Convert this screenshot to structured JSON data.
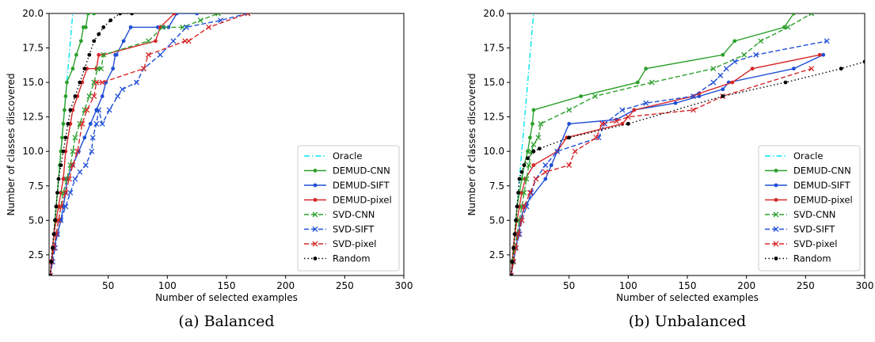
{
  "chart_data": [
    {
      "type": "line",
      "caption": "(a) Balanced",
      "xlabel": "Number of selected examples",
      "ylabel": "Number of classes discovered",
      "xlim": [
        0,
        300
      ],
      "ylim": [
        1,
        20
      ],
      "xticks": [
        50,
        100,
        150,
        200,
        250,
        300
      ],
      "yticks": [
        2.5,
        5.0,
        7.5,
        10.0,
        12.5,
        15.0,
        17.5,
        20.0
      ],
      "ytick_labels": [
        "2.5",
        "5.0",
        "7.5",
        "10.0",
        "12.5",
        "15.0",
        "17.5",
        "20.0"
      ],
      "legend_position": "lower-right",
      "series": [
        {
          "name": "Oracle",
          "color": "#00e5ee",
          "style": "dashdot",
          "marker": "none",
          "x": [
            1,
            20
          ],
          "y": [
            1,
            20
          ]
        },
        {
          "name": "DEMUD-CNN",
          "color": "#2ca02c",
          "style": "solid",
          "marker": "dot",
          "x": [
            1,
            2,
            3,
            4,
            5,
            6,
            7,
            8,
            9,
            10,
            11,
            12,
            13,
            14,
            15,
            20,
            23,
            27,
            29,
            31,
            33,
            38
          ],
          "y": [
            1,
            2,
            3,
            4,
            5,
            6,
            7,
            8,
            9,
            10,
            11,
            12,
            13,
            14,
            15,
            16,
            17,
            18,
            19,
            19,
            20,
            20
          ]
        },
        {
          "name": "DEMUD-SIFT",
          "color": "#1f4fd6",
          "style": "solid",
          "marker": "dot",
          "x": [
            1,
            2,
            4,
            7,
            10,
            12,
            14,
            15,
            20,
            25,
            30,
            35,
            40,
            45,
            48,
            54,
            56,
            57,
            63,
            69,
            92,
            97,
            101,
            108,
            125
          ],
          "y": [
            1,
            2,
            3,
            4,
            5,
            6,
            7,
            8,
            9,
            10,
            11,
            12,
            13,
            14,
            15,
            16,
            17,
            17,
            18,
            19,
            19,
            19,
            19,
            20,
            20
          ]
        },
        {
          "name": "DEMUD-pixel",
          "color": "#d62728",
          "style": "solid",
          "marker": "dot",
          "x": [
            1,
            2,
            3,
            4,
            6,
            8,
            10,
            12,
            14,
            18,
            20,
            24,
            28,
            32,
            40,
            42,
            46,
            90,
            94,
            106
          ],
          "y": [
            1,
            2,
            3,
            4,
            5,
            6,
            7,
            8,
            10,
            12,
            13,
            14,
            15,
            16,
            16,
            17,
            17,
            18,
            19,
            20
          ]
        },
        {
          "name": "SVD-CNN",
          "color": "#2ca02c",
          "style": "dashed",
          "marker": "x",
          "x": [
            2,
            4,
            6,
            8,
            10,
            12,
            15,
            18,
            20,
            22,
            26,
            30,
            34,
            38,
            41,
            44,
            46,
            84,
            96,
            113,
            128,
            143
          ],
          "y": [
            2,
            3,
            4,
            5,
            6,
            7,
            8,
            9,
            10,
            11,
            12,
            13,
            14,
            15,
            16,
            16,
            17,
            18,
            19,
            19,
            19.5,
            20
          ]
        },
        {
          "name": "SVD-SIFT",
          "color": "#1f4fd6",
          "style": "dashed",
          "marker": "x",
          "x": [
            1,
            3,
            5,
            7,
            10,
            14,
            18,
            22,
            26,
            31,
            36,
            37,
            40,
            42,
            45,
            51,
            58,
            62,
            74,
            80,
            94,
            105,
            116,
            145,
            168
          ],
          "y": [
            1,
            2,
            3,
            4,
            5,
            6,
            7,
            8,
            8.5,
            9,
            10,
            11,
            12,
            13,
            12,
            13,
            14,
            14.5,
            15,
            16,
            17,
            18,
            19,
            19.5,
            20
          ]
        },
        {
          "name": "SVD-pixel",
          "color": "#d62728",
          "style": "dashed",
          "marker": "x",
          "x": [
            1,
            2,
            4,
            6,
            8,
            10,
            14,
            17,
            20,
            24,
            28,
            32,
            38,
            40,
            45,
            80,
            84,
            115,
            118,
            135,
            168
          ],
          "y": [
            1,
            2,
            3,
            4,
            5,
            6,
            7,
            8,
            9,
            10,
            12,
            13,
            14,
            15,
            15,
            16,
            17,
            18,
            18,
            19,
            20
          ]
        },
        {
          "name": "Random",
          "color": "#000000",
          "style": "dotted",
          "marker": "dot",
          "x": [
            1,
            2,
            3,
            4,
            5,
            6,
            7,
            8,
            10,
            12,
            14,
            16,
            18,
            22,
            26,
            30,
            34,
            38,
            42,
            46,
            52,
            60,
            70
          ],
          "y": [
            1,
            2,
            3,
            4,
            5,
            6,
            7,
            8,
            9,
            10,
            11,
            12,
            13,
            14,
            15,
            16,
            17,
            18,
            18.5,
            19,
            19.5,
            20,
            20
          ]
        }
      ]
    },
    {
      "type": "line",
      "caption": "(b) Unbalanced",
      "xlabel": "Number of selected examples",
      "ylabel": "Number of classes discovered",
      "xlim": [
        0,
        300
      ],
      "ylim": [
        1,
        20
      ],
      "xticks": [
        50,
        100,
        150,
        200,
        250,
        300
      ],
      "yticks": [
        2.5,
        5.0,
        7.5,
        10.0,
        12.5,
        15.0,
        17.5,
        20.0
      ],
      "ytick_labels": [
        "2.5",
        "5.0",
        "7.5",
        "10.0",
        "12.5",
        "15.0",
        "17.5",
        "20.0"
      ],
      "legend_position": "lower-right",
      "series": [
        {
          "name": "Oracle",
          "color": "#00e5ee",
          "style": "dashdot",
          "marker": "none",
          "x": [
            1,
            20
          ],
          "y": [
            1,
            20
          ]
        },
        {
          "name": "DEMUD-CNN",
          "color": "#2ca02c",
          "style": "solid",
          "marker": "dot",
          "x": [
            1,
            2,
            3,
            4,
            5,
            6,
            8,
            10,
            12,
            15,
            17,
            19,
            20,
            60,
            108,
            115,
            180,
            190,
            232,
            240
          ],
          "y": [
            1,
            2,
            3,
            4,
            5,
            6,
            7,
            8,
            9,
            10,
            11,
            12,
            13,
            14,
            15,
            16,
            17,
            18,
            19,
            20
          ]
        },
        {
          "name": "DEMUD-SIFT",
          "color": "#1f4fd6",
          "style": "solid",
          "marker": "dot",
          "x": [
            1,
            3,
            5,
            7,
            9,
            12,
            30,
            35,
            40,
            50,
            90,
            105,
            140,
            160,
            180,
            185,
            240,
            265
          ],
          "y": [
            1,
            2,
            3,
            4,
            5,
            6,
            8,
            9,
            10,
            12,
            12.3,
            13,
            13.5,
            14,
            14.5,
            15,
            16,
            17
          ]
        },
        {
          "name": "DEMUD-pixel",
          "color": "#d62728",
          "style": "solid",
          "marker": "dot",
          "x": [
            1,
            2,
            3,
            4,
            6,
            8,
            10,
            13,
            20,
            40,
            48,
            95,
            105,
            155,
            160,
            188,
            205,
            262
          ],
          "y": [
            1,
            2,
            3,
            4,
            5,
            6,
            7,
            8,
            9,
            10,
            11,
            12,
            13,
            14,
            14.2,
            15,
            16,
            17
          ]
        },
        {
          "name": "SVD-CNN",
          "color": "#2ca02c",
          "style": "dashed",
          "marker": "x",
          "x": [
            2,
            4,
            6,
            8,
            10,
            12,
            14,
            16,
            18,
            20,
            24,
            26,
            50,
            72,
            120,
            172,
            198,
            212,
            235,
            255
          ],
          "y": [
            2,
            3,
            4,
            5,
            6,
            7,
            8,
            9,
            10,
            10.5,
            11,
            12,
            13,
            14,
            15,
            16,
            17,
            18,
            19,
            20
          ]
        },
        {
          "name": "SVD-SIFT",
          "color": "#1f4fd6",
          "style": "dashed",
          "marker": "x",
          "x": [
            1,
            3,
            5,
            8,
            10,
            14,
            18,
            22,
            30,
            40,
            75,
            80,
            95,
            115,
            155,
            172,
            178,
            183,
            190,
            208,
            268
          ],
          "y": [
            1,
            2,
            3,
            4,
            5,
            6,
            7,
            8,
            9,
            10,
            11,
            12,
            13,
            13.5,
            14,
            15,
            15.5,
            16,
            16.5,
            17,
            18
          ]
        },
        {
          "name": "SVD-pixel",
          "color": "#d62728",
          "style": "dashed",
          "marker": "x",
          "x": [
            1,
            3,
            5,
            7,
            10,
            12,
            17,
            22,
            30,
            50,
            55,
            73,
            78,
            90,
            100,
            155,
            180,
            255
          ],
          "y": [
            1,
            2,
            3,
            4,
            5,
            6,
            7,
            8,
            8.5,
            9,
            10,
            11,
            12,
            12.2,
            12.5,
            13,
            14,
            16
          ]
        },
        {
          "name": "Random",
          "color": "#000000",
          "style": "dotted",
          "marker": "dot",
          "x": [
            1,
            2,
            3,
            4,
            5,
            6,
            7,
            8,
            10,
            12,
            15,
            20,
            25,
            50,
            100,
            180,
            233,
            280,
            300
          ],
          "y": [
            1,
            2,
            3,
            4,
            5,
            6,
            7,
            8,
            8.5,
            9,
            9.5,
            10,
            10.2,
            11,
            12,
            14,
            15,
            16,
            16.5
          ]
        }
      ]
    }
  ]
}
